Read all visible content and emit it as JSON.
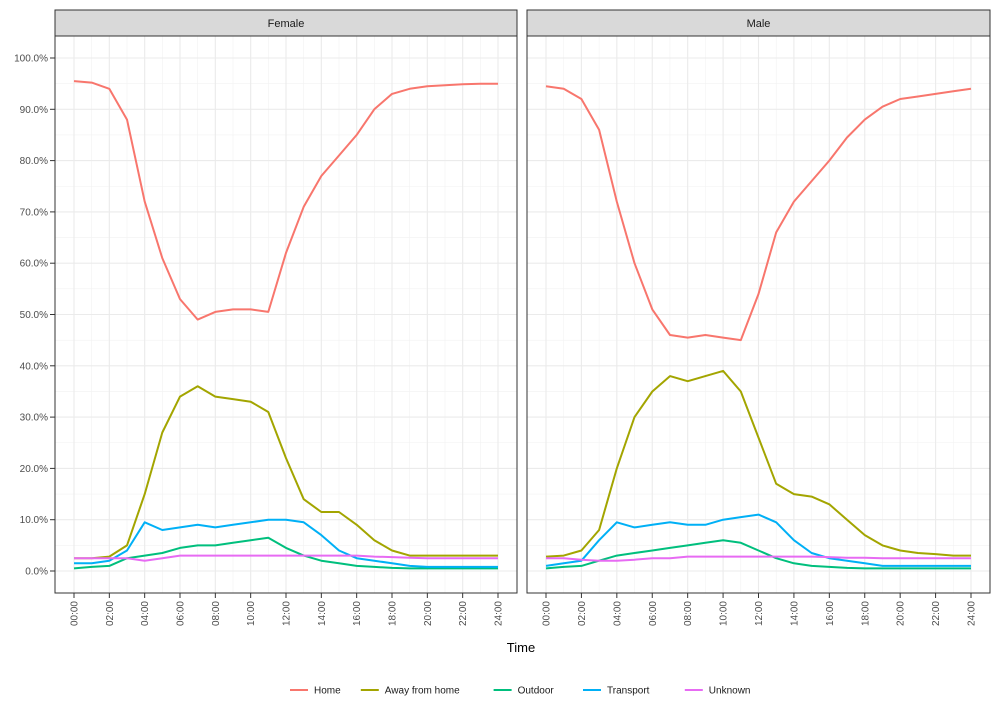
{
  "chart_data": {
    "type": "line",
    "facets": [
      "Female",
      "Male"
    ],
    "xlabel": "Time",
    "ylabel": "",
    "x_ticks": [
      "00:00",
      "02:00",
      "04:00",
      "06:00",
      "08:00",
      "10:00",
      "12:00",
      "14:00",
      "16:00",
      "18:00",
      "20:00",
      "22:00",
      "24:00"
    ],
    "ylim": [
      0,
      100
    ],
    "y_ticks": [
      "0.0%",
      "10.0%",
      "20.0%",
      "30.0%",
      "40.0%",
      "50.0%",
      "60.0%",
      "70.0%",
      "80.0%",
      "90.0%",
      "100.0%"
    ],
    "grid": true,
    "legend_position": "bottom",
    "series_names": [
      "Home",
      "Away from home",
      "Outdoor",
      "Transport",
      "Unknown"
    ],
    "colors": [
      "#F8766D",
      "#A3A500",
      "#00BF7D",
      "#00B0F6",
      "#E76BF3"
    ],
    "panels": [
      {
        "name": "Female",
        "series": [
          {
            "name": "Home",
            "x": [
              0,
              1,
              2,
              3,
              4,
              5,
              6,
              7,
              8,
              9,
              10,
              11,
              12,
              13,
              14,
              15,
              16,
              17,
              18,
              19,
              20,
              21,
              22,
              23,
              24
            ],
            "values": [
              95.5,
              95.2,
              94,
              88,
              72,
              61,
              53,
              49,
              50.5,
              51,
              51,
              50.5,
              62,
              71,
              77,
              81,
              85,
              90,
              93,
              94,
              94.5,
              94.7,
              94.9,
              95,
              95
            ]
          },
          {
            "name": "Away from home",
            "x": [
              0,
              1,
              2,
              3,
              4,
              5,
              6,
              7,
              8,
              9,
              10,
              11,
              12,
              13,
              14,
              15,
              16,
              17,
              18,
              19,
              20,
              21,
              22,
              23,
              24
            ],
            "values": [
              2.5,
              2.5,
              2.8,
              5,
              15,
              27,
              34,
              36,
              34,
              33.5,
              33,
              31,
              22,
              14,
              11.5,
              11.5,
              9,
              6,
              4,
              3,
              3,
              3,
              3,
              3,
              3
            ]
          },
          {
            "name": "Outdoor",
            "x": [
              0,
              1,
              2,
              3,
              4,
              5,
              6,
              7,
              8,
              9,
              10,
              11,
              12,
              13,
              14,
              15,
              16,
              17,
              18,
              19,
              20,
              21,
              22,
              23,
              24
            ],
            "values": [
              0.5,
              0.8,
              1,
              2.5,
              3,
              3.5,
              4.5,
              5,
              5,
              5.5,
              6,
              6.5,
              4.5,
              3,
              2,
              1.5,
              1,
              0.8,
              0.6,
              0.5,
              0.5,
              0.5,
              0.5,
              0.5,
              0.5
            ]
          },
          {
            "name": "Transport",
            "x": [
              0,
              1,
              2,
              3,
              4,
              5,
              6,
              7,
              8,
              9,
              10,
              11,
              12,
              13,
              14,
              15,
              16,
              17,
              18,
              19,
              20,
              21,
              22,
              23,
              24
            ],
            "values": [
              1.5,
              1.5,
              2,
              4,
              9.5,
              8,
              8.5,
              9,
              8.5,
              9,
              9.5,
              10,
              10,
              9.5,
              7,
              4,
              2.5,
              2,
              1.5,
              1,
              0.8,
              0.8,
              0.8,
              0.8,
              0.8
            ]
          },
          {
            "name": "Unknown",
            "x": [
              0,
              1,
              2,
              3,
              4,
              5,
              6,
              7,
              8,
              9,
              10,
              11,
              12,
              13,
              14,
              15,
              16,
              17,
              18,
              19,
              20,
              21,
              22,
              23,
              24
            ],
            "values": [
              2.5,
              2.5,
              2.5,
              2.5,
              2,
              2.5,
              3,
              3,
              3,
              3,
              3,
              3,
              3,
              3,
              3,
              3,
              3,
              2.8,
              2.7,
              2.6,
              2.5,
              2.5,
              2.5,
              2.5,
              2.5
            ]
          }
        ]
      },
      {
        "name": "Male",
        "series": [
          {
            "name": "Home",
            "x": [
              0,
              1,
              2,
              3,
              4,
              5,
              6,
              7,
              8,
              9,
              10,
              11,
              12,
              13,
              14,
              15,
              16,
              17,
              18,
              19,
              20,
              21,
              22,
              23,
              24
            ],
            "values": [
              94.5,
              94,
              92,
              86,
              72,
              60,
              51,
              46,
              45.5,
              46,
              45.5,
              45,
              54,
              66,
              72,
              76,
              80,
              84.5,
              88,
              90.5,
              92,
              92.5,
              93,
              93.5,
              94
            ]
          },
          {
            "name": "Away from home",
            "x": [
              0,
              1,
              2,
              3,
              4,
              5,
              6,
              7,
              8,
              9,
              10,
              11,
              12,
              13,
              14,
              15,
              16,
              17,
              18,
              19,
              20,
              21,
              22,
              23,
              24
            ],
            "values": [
              2.8,
              3,
              4,
              8,
              20,
              30,
              35,
              38,
              37,
              38,
              39,
              35,
              26,
              17,
              15,
              14.5,
              13,
              10,
              7,
              5,
              4,
              3.5,
              3.3,
              3,
              3
            ]
          },
          {
            "name": "Outdoor",
            "x": [
              0,
              1,
              2,
              3,
              4,
              5,
              6,
              7,
              8,
              9,
              10,
              11,
              12,
              13,
              14,
              15,
              16,
              17,
              18,
              19,
              20,
              21,
              22,
              23,
              24
            ],
            "values": [
              0.5,
              0.8,
              1,
              2,
              3,
              3.5,
              4,
              4.5,
              5,
              5.5,
              6,
              5.5,
              4,
              2.5,
              1.5,
              1,
              0.8,
              0.6,
              0.5,
              0.5,
              0.5,
              0.5,
              0.5,
              0.5,
              0.5
            ]
          },
          {
            "name": "Transport",
            "x": [
              0,
              1,
              2,
              3,
              4,
              5,
              6,
              7,
              8,
              9,
              10,
              11,
              12,
              13,
              14,
              15,
              16,
              17,
              18,
              19,
              20,
              21,
              22,
              23,
              24
            ],
            "values": [
              1,
              1.5,
              2,
              6,
              9.5,
              8.5,
              9,
              9.5,
              9,
              9,
              10,
              10.5,
              11,
              9.5,
              6,
              3.5,
              2.5,
              2,
              1.5,
              1,
              1,
              1,
              1,
              1,
              1
            ]
          },
          {
            "name": "Unknown",
            "x": [
              0,
              1,
              2,
              3,
              4,
              5,
              6,
              7,
              8,
              9,
              10,
              11,
              12,
              13,
              14,
              15,
              16,
              17,
              18,
              19,
              20,
              21,
              22,
              23,
              24
            ],
            "values": [
              2.5,
              2.5,
              2.2,
              2,
              2,
              2.2,
              2.5,
              2.5,
              2.8,
              2.8,
              2.8,
              2.8,
              2.8,
              2.8,
              2.8,
              2.8,
              2.7,
              2.6,
              2.6,
              2.5,
              2.5,
              2.5,
              2.5,
              2.5,
              2.5
            ]
          }
        ]
      }
    ]
  }
}
